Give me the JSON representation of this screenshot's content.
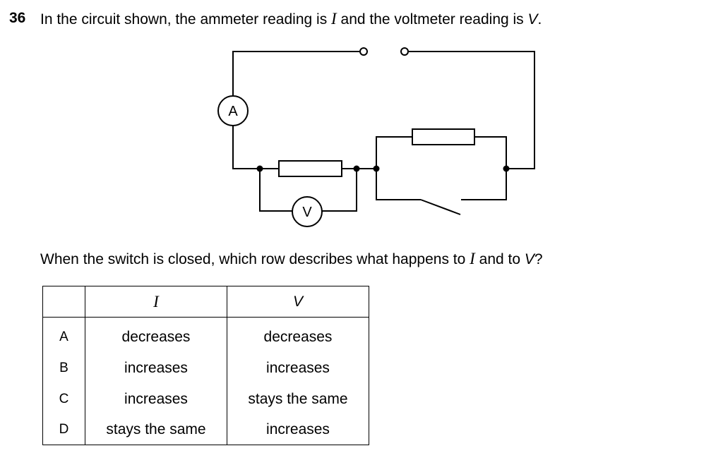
{
  "question": {
    "number": "36",
    "text_prefix": "In the circuit shown, the ammeter reading is ",
    "symbol_current": "I",
    "text_middle": " and the voltmeter reading is ",
    "symbol_voltage": "V",
    "text_suffix": "."
  },
  "diagram": {
    "ammeter_label": "A",
    "voltmeter_label": "V"
  },
  "prompt": {
    "text_prefix": "When the switch is closed, which row describes what happens to ",
    "symbol_current": "I",
    "text_middle": " and to ",
    "symbol_voltage": "V",
    "text_suffix": "?"
  },
  "table": {
    "headers": [
      "",
      "I",
      "V"
    ],
    "rows": [
      {
        "label": "A",
        "i": "decreases",
        "v": "decreases"
      },
      {
        "label": "B",
        "i": "increases",
        "v": "increases"
      },
      {
        "label": "C",
        "i": "increases",
        "v": "stays the same"
      },
      {
        "label": "D",
        "i": "stays the same",
        "v": "increases"
      }
    ]
  }
}
